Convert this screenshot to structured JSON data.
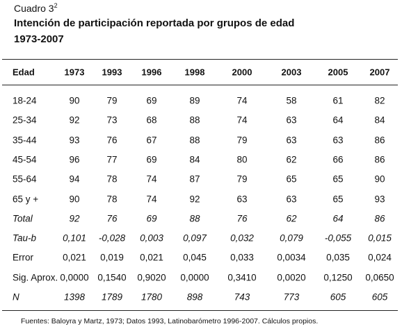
{
  "header": {
    "label": "Cuadro 3",
    "label_sup": "2",
    "title": "Intención de participación reportada por grupos de edad",
    "subtitle": "1973-2007"
  },
  "table": {
    "columns": [
      "Edad",
      "1973",
      "1993",
      "1996",
      "1998",
      "2000",
      "2003",
      "2005",
      "2007"
    ],
    "rows": [
      [
        "18-24",
        "90",
        "79",
        "69",
        "89",
        "74",
        "58",
        "61",
        "82"
      ],
      [
        "25-34",
        "92",
        "73",
        "68",
        "88",
        "74",
        "63",
        "64",
        "84"
      ],
      [
        "35-44",
        "93",
        "76",
        "67",
        "88",
        "79",
        "63",
        "63",
        "86"
      ],
      [
        "45-54",
        "96",
        "77",
        "69",
        "84",
        "80",
        "62",
        "66",
        "86"
      ],
      [
        "55-64",
        "94",
        "78",
        "74",
        "87",
        "79",
        "65",
        "65",
        "90"
      ],
      [
        "65 y +",
        "90",
        "78",
        "74",
        "92",
        "63",
        "63",
        "65",
        "93"
      ],
      [
        "Total",
        "92",
        "76",
        "69",
        "88",
        "76",
        "62",
        "64",
        "86"
      ],
      [
        "Tau-b",
        "0,101",
        "-0,028",
        "0,003",
        "0,097",
        "0,032",
        "0,079",
        "-0,055",
        "0,015"
      ],
      [
        "Error",
        "0,021",
        "0,019",
        "0,021",
        "0,045",
        "0,033",
        "0,0034",
        "0,035",
        "0,024"
      ],
      [
        "Sig. Aprox.",
        "0,0000",
        "0,1540",
        "0,9020",
        "0,0000",
        "0,3410",
        "0,0020",
        "0,1250",
        "0,0650"
      ],
      [
        "N",
        "1398",
        "1789",
        "1780",
        "898",
        "743",
        "773",
        "605",
        "605"
      ]
    ]
  },
  "footnote": "Fuentes: Baloyra y Martz, 1973; Datos 1993, Latinobarómetro 1996-2007. Cálculos propios."
}
